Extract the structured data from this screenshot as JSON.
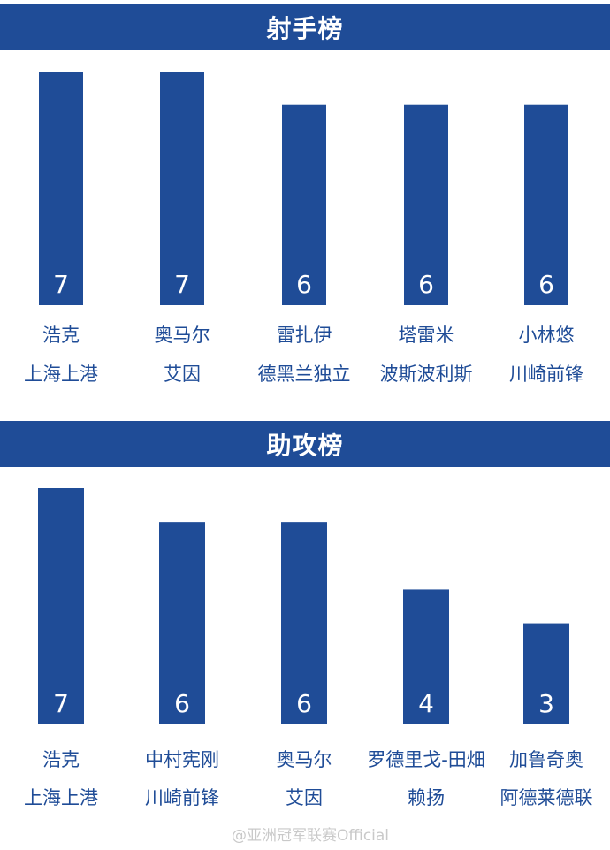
{
  "brand": {
    "primary": "#1f4c97",
    "background": "#ffffff"
  },
  "watermark": "@亚洲冠军联赛Official",
  "chart_data": [
    {
      "type": "bar",
      "title": "射手榜",
      "categories": [
        "浩克",
        "奥马尔",
        "雷扎伊",
        "塔雷米",
        "小林悠"
      ],
      "teams": [
        "上海上港",
        "艾因",
        "德黑兰独立",
        "波斯波利斯",
        "川崎前锋"
      ],
      "values": [
        7,
        7,
        6,
        6,
        6
      ],
      "value_labels": [
        "7",
        "7",
        "6",
        "6",
        "6"
      ],
      "ylim": [
        0,
        7
      ],
      "grid": false
    },
    {
      "type": "bar",
      "title": "助攻榜",
      "categories": [
        "浩克",
        "中村宪刚",
        "奥马尔",
        "罗德里戈-田畑",
        "加鲁奇奥"
      ],
      "teams": [
        "上海上港",
        "川崎前锋",
        "艾因",
        "赖扬",
        "阿德莱德联"
      ],
      "values": [
        7,
        6,
        6,
        4,
        3
      ],
      "value_labels": [
        "7",
        "6",
        "6",
        "4",
        "3"
      ],
      "ylim": [
        0,
        7
      ],
      "grid": false
    }
  ]
}
